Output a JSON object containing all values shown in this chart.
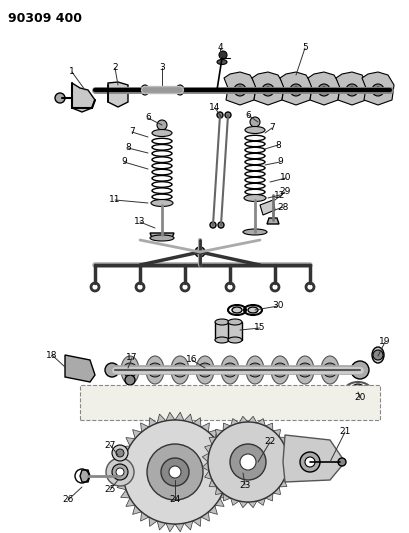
{
  "title": "90309 400",
  "bg_color": "#ffffff",
  "fig_width": 4.09,
  "fig_height": 5.33,
  "dpi": 100
}
